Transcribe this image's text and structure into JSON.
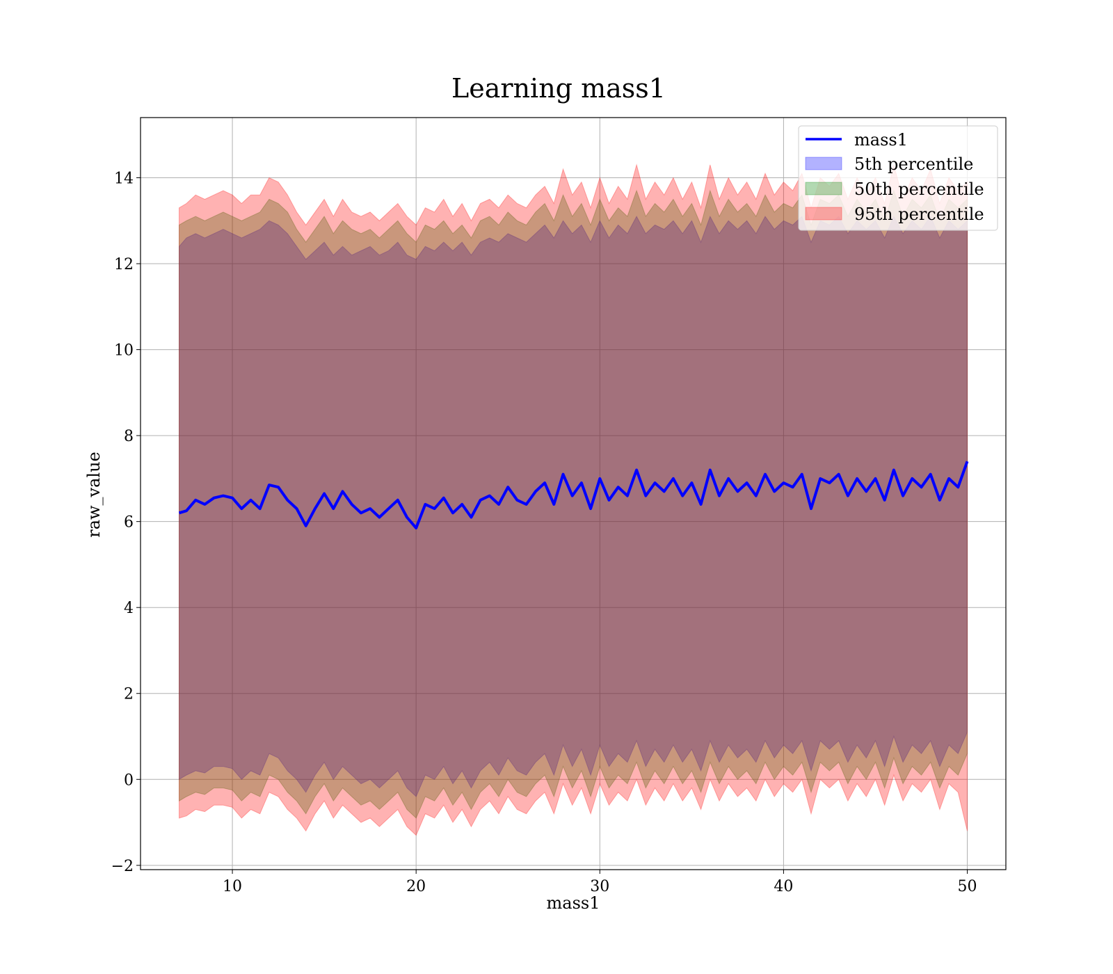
{
  "chart_data": {
    "type": "area",
    "title": "Learning mass1",
    "xlabel": "mass1",
    "ylabel": "raw_value",
    "xlim": [
      5,
      52.1
    ],
    "ylim": [
      -2.1,
      15.4
    ],
    "xticks": [
      10,
      20,
      30,
      40,
      50
    ],
    "yticks": [
      -2,
      0,
      2,
      4,
      6,
      8,
      10,
      12,
      14
    ],
    "ytick_labels": [
      "−2",
      "0",
      "2",
      "4",
      "6",
      "8",
      "10",
      "12",
      "14"
    ],
    "grid": true,
    "legend_position": "top-right",
    "x_range": [
      7.1,
      50
    ],
    "line_series": {
      "name": "mass1",
      "color": "#0000ff",
      "x": [
        7.1,
        7.5,
        8.0,
        8.5,
        9.0,
        9.5,
        10.0,
        10.5,
        11.0,
        11.5,
        12.0,
        12.5,
        13.0,
        13.5,
        14.0,
        14.5,
        15.0,
        15.5,
        16.0,
        16.5,
        17.0,
        17.5,
        18.0,
        18.5,
        19.0,
        19.5,
        20.0,
        20.5,
        21.0,
        21.5,
        22.0,
        22.5,
        23.0,
        23.5,
        24.0,
        24.5,
        25.0,
        25.5,
        26.0,
        26.5,
        27.0,
        27.5,
        28.0,
        28.5,
        29.0,
        29.5,
        30.0,
        30.5,
        31.0,
        31.5,
        32.0,
        32.5,
        33.0,
        33.5,
        34.0,
        34.5,
        35.0,
        35.5,
        36.0,
        36.5,
        37.0,
        37.5,
        38.0,
        38.5,
        39.0,
        39.5,
        40.0,
        40.5,
        41.0,
        41.5,
        42.0,
        42.5,
        43.0,
        43.5,
        44.0,
        44.5,
        45.0,
        45.5,
        46.0,
        46.5,
        47.0,
        47.5,
        48.0,
        48.5,
        49.0,
        49.5,
        50.0
      ],
      "y": [
        6.2,
        6.25,
        6.5,
        6.4,
        6.55,
        6.6,
        6.55,
        6.3,
        6.5,
        6.3,
        6.85,
        6.8,
        6.5,
        6.3,
        5.9,
        6.3,
        6.65,
        6.3,
        6.7,
        6.4,
        6.2,
        6.3,
        6.1,
        6.3,
        6.5,
        6.1,
        5.85,
        6.4,
        6.3,
        6.55,
        6.2,
        6.4,
        6.1,
        6.5,
        6.6,
        6.4,
        6.8,
        6.5,
        6.4,
        6.7,
        6.9,
        6.4,
        7.1,
        6.6,
        6.9,
        6.3,
        7.0,
        6.5,
        6.8,
        6.6,
        7.2,
        6.6,
        6.9,
        6.7,
        7.0,
        6.6,
        6.9,
        6.4,
        7.2,
        6.6,
        7.0,
        6.7,
        6.9,
        6.6,
        7.1,
        6.7,
        6.9,
        6.8,
        7.1,
        6.3,
        7.0,
        6.9,
        7.1,
        6.6,
        7.0,
        6.7,
        7.0,
        6.5,
        7.2,
        6.6,
        7.0,
        6.8,
        7.1,
        6.5,
        7.0,
        6.8,
        7.4
      ]
    },
    "bands": [
      {
        "name": "5th percentile",
        "color": "#0000ff",
        "upper": [
          12.4,
          12.6,
          12.7,
          12.6,
          12.7,
          12.8,
          12.7,
          12.6,
          12.7,
          12.8,
          13.0,
          12.9,
          12.7,
          12.4,
          12.1,
          12.3,
          12.5,
          12.2,
          12.4,
          12.2,
          12.3,
          12.4,
          12.2,
          12.3,
          12.5,
          12.2,
          12.1,
          12.4,
          12.3,
          12.5,
          12.3,
          12.5,
          12.2,
          12.5,
          12.6,
          12.5,
          12.7,
          12.6,
          12.5,
          12.7,
          12.9,
          12.6,
          13.0,
          12.7,
          12.9,
          12.5,
          13.0,
          12.6,
          12.9,
          12.7,
          13.1,
          12.7,
          12.9,
          12.8,
          13.0,
          12.7,
          13.0,
          12.5,
          13.1,
          12.7,
          13.0,
          12.8,
          13.0,
          12.7,
          13.1,
          12.8,
          13.0,
          12.9,
          13.1,
          12.5,
          13.0,
          12.9,
          13.1,
          12.7,
          13.0,
          12.8,
          13.0,
          12.6,
          13.1,
          12.7,
          13.0,
          12.8,
          13.1,
          12.6,
          13.0,
          12.8,
          13.0
        ],
        "lower": [
          0.0,
          0.1,
          0.2,
          0.15,
          0.3,
          0.3,
          0.25,
          0.0,
          0.2,
          0.1,
          0.6,
          0.5,
          0.2,
          0.0,
          -0.3,
          0.1,
          0.4,
          0.0,
          0.3,
          0.1,
          -0.1,
          0.0,
          -0.2,
          0.0,
          0.2,
          -0.2,
          -0.4,
          0.1,
          0.0,
          0.3,
          -0.1,
          0.2,
          -0.2,
          0.2,
          0.4,
          0.1,
          0.5,
          0.2,
          0.1,
          0.4,
          0.6,
          0.1,
          0.8,
          0.3,
          0.7,
          0.1,
          0.8,
          0.3,
          0.6,
          0.4,
          0.9,
          0.3,
          0.7,
          0.4,
          0.8,
          0.4,
          0.7,
          0.2,
          0.9,
          0.4,
          0.8,
          0.5,
          0.7,
          0.4,
          0.9,
          0.5,
          0.8,
          0.6,
          0.9,
          0.2,
          0.9,
          0.7,
          0.9,
          0.4,
          0.8,
          0.5,
          0.9,
          0.3,
          1.0,
          0.4,
          0.8,
          0.6,
          0.9,
          0.3,
          0.8,
          0.6,
          1.1
        ]
      },
      {
        "name": "50th percentile",
        "color": "#008000",
        "upper": [
          12.9,
          13.0,
          13.1,
          13.0,
          13.1,
          13.2,
          13.1,
          13.0,
          13.1,
          13.2,
          13.5,
          13.4,
          13.2,
          12.8,
          12.5,
          12.8,
          13.1,
          12.7,
          13.0,
          12.8,
          12.7,
          12.8,
          12.6,
          12.8,
          13.0,
          12.7,
          12.5,
          12.9,
          12.8,
          13.0,
          12.7,
          12.9,
          12.6,
          13.0,
          13.1,
          12.9,
          13.2,
          13.0,
          12.9,
          13.2,
          13.4,
          13.0,
          13.6,
          13.1,
          13.4,
          12.9,
          13.5,
          13.0,
          13.3,
          13.1,
          13.7,
          13.1,
          13.4,
          13.2,
          13.5,
          13.1,
          13.4,
          12.9,
          13.7,
          13.1,
          13.5,
          13.2,
          13.4,
          13.1,
          13.6,
          13.2,
          13.4,
          13.3,
          13.6,
          12.9,
          13.5,
          13.4,
          13.6,
          13.1,
          13.5,
          13.2,
          13.5,
          13.0,
          13.7,
          13.1,
          13.5,
          13.3,
          13.6,
          13.0,
          13.5,
          13.3,
          13.5
        ],
        "lower": [
          -0.5,
          -0.4,
          -0.3,
          -0.35,
          -0.2,
          -0.2,
          -0.25,
          -0.5,
          -0.3,
          -0.4,
          0.1,
          0.0,
          -0.3,
          -0.5,
          -0.8,
          -0.4,
          -0.1,
          -0.5,
          -0.2,
          -0.4,
          -0.6,
          -0.5,
          -0.7,
          -0.5,
          -0.3,
          -0.7,
          -0.9,
          -0.4,
          -0.5,
          -0.2,
          -0.6,
          -0.3,
          -0.7,
          -0.3,
          -0.1,
          -0.4,
          0.0,
          -0.3,
          -0.4,
          -0.1,
          0.1,
          -0.4,
          0.3,
          -0.2,
          0.2,
          -0.4,
          0.3,
          -0.2,
          0.1,
          -0.1,
          0.4,
          -0.2,
          0.2,
          -0.1,
          0.3,
          -0.1,
          0.2,
          -0.3,
          0.4,
          -0.1,
          0.3,
          0.0,
          0.2,
          -0.1,
          0.4,
          0.0,
          0.3,
          0.1,
          0.4,
          -0.3,
          0.4,
          0.2,
          0.4,
          -0.1,
          0.3,
          0.0,
          0.4,
          -0.2,
          0.5,
          -0.1,
          0.3,
          0.1,
          0.4,
          -0.2,
          0.3,
          0.1,
          0.6
        ]
      },
      {
        "name": "95th percentile",
        "color": "#ff0000",
        "upper": [
          13.3,
          13.4,
          13.6,
          13.5,
          13.6,
          13.7,
          13.6,
          13.4,
          13.6,
          13.6,
          14.0,
          13.9,
          13.6,
          13.2,
          12.9,
          13.2,
          13.5,
          13.1,
          13.5,
          13.2,
          13.1,
          13.2,
          13.0,
          13.2,
          13.4,
          13.1,
          12.9,
          13.3,
          13.2,
          13.5,
          13.1,
          13.4,
          13.0,
          13.4,
          13.5,
          13.3,
          13.6,
          13.4,
          13.3,
          13.6,
          13.8,
          13.4,
          14.2,
          13.6,
          13.9,
          13.3,
          14.0,
          13.4,
          13.8,
          13.5,
          14.3,
          13.5,
          13.9,
          13.6,
          14.0,
          13.5,
          13.9,
          13.3,
          14.3,
          13.5,
          14.0,
          13.6,
          13.9,
          13.5,
          14.1,
          13.6,
          13.9,
          13.7,
          14.1,
          13.3,
          14.0,
          13.8,
          14.1,
          13.5,
          14.0,
          13.6,
          14.0,
          13.4,
          14.3,
          13.5,
          14.0,
          13.7,
          14.2,
          13.4,
          14.0,
          13.7,
          13.9
        ],
        "lower": [
          -0.9,
          -0.85,
          -0.7,
          -0.75,
          -0.6,
          -0.6,
          -0.65,
          -0.9,
          -0.7,
          -0.8,
          -0.3,
          -0.4,
          -0.7,
          -0.9,
          -1.2,
          -0.8,
          -0.5,
          -0.9,
          -0.6,
          -0.8,
          -1.0,
          -0.9,
          -1.1,
          -0.9,
          -0.7,
          -1.1,
          -1.3,
          -0.8,
          -0.9,
          -0.6,
          -1.0,
          -0.7,
          -1.1,
          -0.7,
          -0.5,
          -0.8,
          -0.4,
          -0.7,
          -0.8,
          -0.5,
          -0.3,
          -0.8,
          -0.1,
          -0.6,
          -0.2,
          -0.8,
          -0.1,
          -0.6,
          -0.3,
          -0.5,
          0.0,
          -0.6,
          -0.2,
          -0.5,
          -0.1,
          -0.5,
          -0.2,
          -0.7,
          0.0,
          -0.5,
          -0.1,
          -0.4,
          -0.2,
          -0.5,
          0.0,
          -0.4,
          -0.1,
          -0.3,
          0.0,
          -0.8,
          0.0,
          -0.2,
          0.0,
          -0.5,
          -0.1,
          -0.4,
          0.0,
          -0.6,
          0.1,
          -0.5,
          -0.1,
          -0.3,
          0.0,
          -0.7,
          -0.1,
          -0.3,
          -1.2
        ]
      }
    ]
  }
}
